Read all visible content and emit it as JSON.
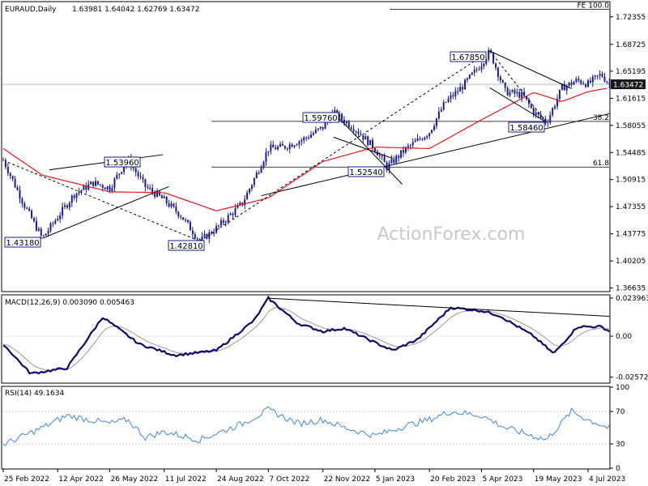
{
  "header": {
    "symbol": "EURAUD,Daily",
    "ohlc": "1.63981 1.64042 1.62769 1.63472"
  },
  "watermark": "ActionForex.com",
  "colors": {
    "price": "#1c1c8a",
    "ema": "#e8161b",
    "macd": "#0a0a70",
    "signal": "#b09090",
    "rsi": "#3d86e0",
    "price_tag_bg": "#1a1a1a",
    "label_box": "#1c1c8a",
    "line": "#000000",
    "grid": "#c8c8c8"
  },
  "chart_data": [
    {
      "type": "candlestick",
      "title": "EURAUD,Daily",
      "x_tick_labels": [
        "25 Feb 2022",
        "12 Apr 2022",
        "26 May 2022",
        "11 Jul 2022",
        "24 Aug 2022",
        "7 Oct 2022",
        "22 Nov 2022",
        "5 Jan 2023",
        "20 Feb 2023",
        "5 Apr 2023",
        "19 May 2023",
        "4 Jul 2023"
      ],
      "y_tick_labels": [
        "1.72355",
        "1.68725",
        "1.65195",
        "1.61615",
        "1.58055",
        "1.54485",
        "1.50915",
        "1.47355",
        "1.43775",
        "1.40205",
        "1.36635"
      ],
      "ylim": [
        1.3627,
        1.7425
      ],
      "current_price_label": "1.63472",
      "close_path": [
        [
          "25 Feb 2022",
          1.535
        ],
        [
          "15 Mar 2022",
          1.475
        ],
        [
          "30 Mar 2022",
          1.4318
        ],
        [
          "12 Apr 2022",
          1.46
        ],
        [
          "26 Apr 2022",
          1.49
        ],
        [
          "12 May 2022",
          1.505
        ],
        [
          "26 May 2022",
          1.498
        ],
        [
          "10 Jun 2022",
          1.536
        ],
        [
          "25 Jun 2022",
          1.5
        ],
        [
          "11 Jul 2022",
          1.482
        ],
        [
          "25 Jul 2022",
          1.462
        ],
        [
          "10 Aug 2022",
          1.4281
        ],
        [
          "24 Aug 2022",
          1.445
        ],
        [
          "15 Sep 2022",
          1.478
        ],
        [
          "28 Sep 2022",
          1.52
        ],
        [
          "7 Oct 2022",
          1.55
        ],
        [
          "20 Oct 2022",
          1.552
        ],
        [
          "5 Nov 2022",
          1.562
        ],
        [
          "22 Nov 2022",
          1.578
        ],
        [
          "1 Dec 2022",
          1.597
        ],
        [
          "20 Dec 2022",
          1.575
        ],
        [
          "5 Jan 2023",
          1.55
        ],
        [
          "15 Jan 2023",
          1.5254
        ],
        [
          "30 Jan 2023",
          1.548
        ],
        [
          "20 Feb 2023",
          1.572
        ],
        [
          "5 Mar 2023",
          1.61
        ],
        [
          "20 Mar 2023",
          1.632
        ],
        [
          "5 Apr 2023",
          1.662
        ],
        [
          "12 Apr 2023",
          1.678
        ],
        [
          "25 Apr 2023",
          1.625
        ],
        [
          "10 May 2023",
          1.62
        ],
        [
          "19 May 2023",
          1.598
        ],
        [
          "30 May 2023",
          1.5846
        ],
        [
          "12 Jun 2023",
          1.63
        ],
        [
          "25 Jun 2023",
          1.64
        ],
        [
          "4 Jul 2023",
          1.635
        ],
        [
          "15 Jul 2023",
          1.648
        ],
        [
          "22 Jul 2023",
          1.6347
        ]
      ],
      "ema_path": [
        [
          "25 Feb 2022",
          1.55
        ],
        [
          "30 Mar 2022",
          1.515
        ],
        [
          "26 May 2022",
          1.493
        ],
        [
          "11 Jul 2022",
          1.492
        ],
        [
          "24 Aug 2022",
          1.468
        ],
        [
          "7 Oct 2022",
          1.485
        ],
        [
          "22 Nov 2022",
          1.533
        ],
        [
          "5 Jan 2023",
          1.552
        ],
        [
          "20 Feb 2023",
          1.55
        ],
        [
          "5 Apr 2023",
          1.588
        ],
        [
          "19 May 2023",
          1.624
        ],
        [
          "12 Jun 2023",
          1.612
        ],
        [
          "4 Jul 2023",
          1.625
        ],
        [
          "22 Jul 2023",
          1.63
        ]
      ],
      "annotations": [
        {
          "text": "1.43180",
          "date": "30 Mar 2022",
          "value": 1.4318
        },
        {
          "text": "1.53960",
          "date": "1 Jun 2022",
          "value": 1.5396
        },
        {
          "text": "1.42810",
          "date": "10 Aug 2022",
          "value": 1.4281
        },
        {
          "text": "1.59760",
          "date": "1 Dec 2022",
          "value": 1.5976
        },
        {
          "text": "1.52540",
          "date": "15 Jan 2023",
          "value": 1.5254
        },
        {
          "text": "1.67850",
          "date": "12 Apr 2023",
          "value": 1.6785
        },
        {
          "text": "1.58460",
          "date": "30 May 2023",
          "value": 1.5846
        }
      ],
      "fib_levels": [
        {
          "label": "FE 100.0",
          "value": 1.7333
        },
        {
          "label": "38.2",
          "value": 1.5858
        },
        {
          "label": "61.8",
          "value": 1.5257
        }
      ]
    },
    {
      "type": "line",
      "title": "MACD(12,26,9) 0.003090 0.005463",
      "series": [
        {
          "name": "MACD",
          "values": [
            [
              -0.005,
              "25 Feb 2022"
            ],
            [
              -0.0235,
              "20 Mar 2022"
            ],
            [
              -0.02,
              "20 Apr 2022"
            ],
            [
              0.012,
              "20 May 2022"
            ],
            [
              -0.005,
              "20 Jun 2022"
            ],
            [
              -0.012,
              "20 Jul 2022"
            ],
            [
              -0.009,
              "24 Aug 2022"
            ],
            [
              0.01,
              "25 Sep 2022"
            ],
            [
              0.0239,
              "7 Oct 2022"
            ],
            [
              0.008,
              "1 Nov 2022"
            ],
            [
              0.003,
              "22 Nov 2022"
            ],
            [
              0.005,
              "10 Dec 2022"
            ],
            [
              -0.004,
              "5 Jan 2023"
            ],
            [
              -0.009,
              "20 Jan 2023"
            ],
            [
              -0.002,
              "10 Feb 2023"
            ],
            [
              0.018,
              "10 Mar 2023"
            ],
            [
              0.016,
              "5 Apr 2023"
            ],
            [
              0.013,
              "20 Apr 2023"
            ],
            [
              0.0,
              "19 May 2023"
            ],
            [
              -0.011,
              "5 Jun 2023"
            ],
            [
              0.006,
              "25 Jun 2023"
            ],
            [
              0.006,
              "15 Jul 2023"
            ],
            [
              0.0031,
              "22 Jul 2023"
            ]
          ]
        }
      ],
      "y_tick_labels": [
        "0.023963",
        "0.00",
        "-0.025726"
      ],
      "ylim": [
        -0.029,
        0.0255
      ]
    },
    {
      "type": "line",
      "title": "RSI(14) 49.1634",
      "series": [
        {
          "name": "RSI",
          "values": [
            [
              29,
              "25 Feb 2022"
            ],
            [
              50,
              "30 Mar 2022"
            ],
            [
              65,
              "20 Apr 2022"
            ],
            [
              55,
              "26 May 2022"
            ],
            [
              60,
              "10 Jun 2022"
            ],
            [
              38,
              "25 Jun 2022"
            ],
            [
              45,
              "11 Jul 2022"
            ],
            [
              35,
              "10 Aug 2022"
            ],
            [
              55,
              "15 Sep 2022"
            ],
            [
              72,
              "7 Oct 2022"
            ],
            [
              55,
              "1 Nov 2022"
            ],
            [
              60,
              "22 Nov 2022"
            ],
            [
              50,
              "10 Dec 2022"
            ],
            [
              40,
              "5 Jan 2023"
            ],
            [
              52,
              "30 Jan 2023"
            ],
            [
              60,
              "20 Feb 2023"
            ],
            [
              70,
              "10 Mar 2023"
            ],
            [
              65,
              "5 Apr 2023"
            ],
            [
              50,
              "25 Apr 2023"
            ],
            [
              35,
              "30 May 2023"
            ],
            [
              70,
              "20 Jun 2023"
            ],
            [
              60,
              "4 Jul 2023"
            ],
            [
              49.16,
              "22 Jul 2023"
            ]
          ]
        }
      ],
      "y_tick_labels": [
        "100",
        "70",
        "30",
        "0"
      ],
      "ylim": [
        0,
        100
      ]
    }
  ]
}
